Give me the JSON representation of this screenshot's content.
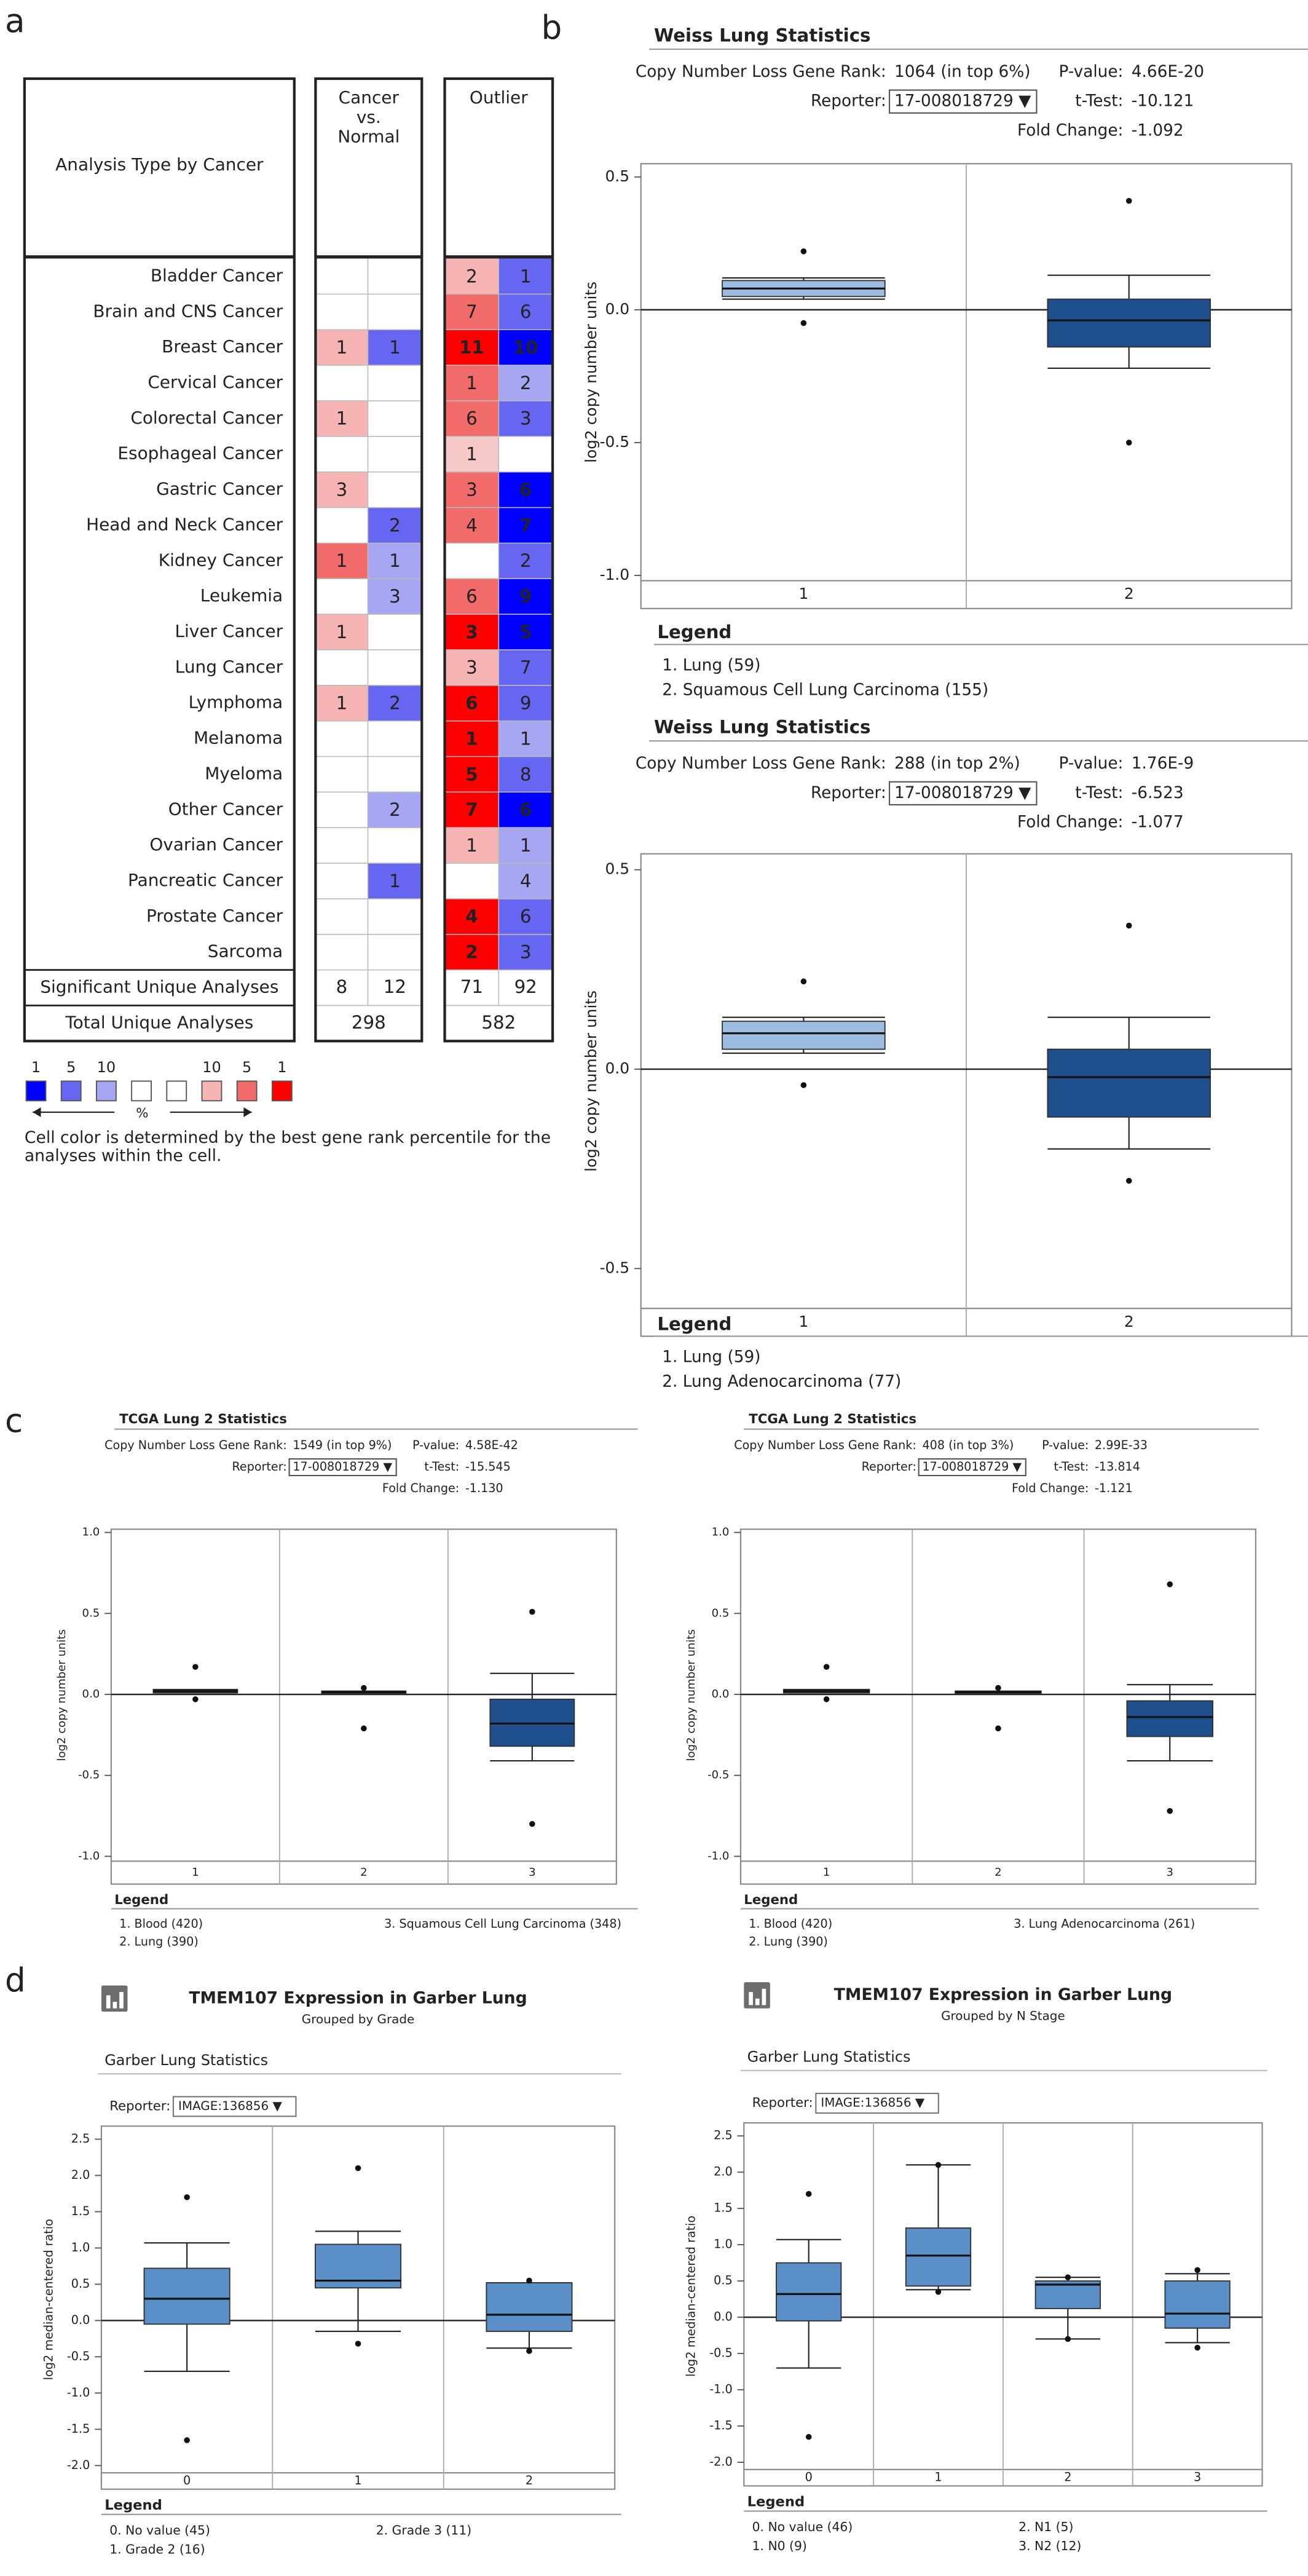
{
  "panel_labels": [
    "a",
    "b",
    "c",
    "d"
  ],
  "heatmap": {
    "header": {
      "name": "Analysis Type by Cancer",
      "cancer_vs_normal": [
        "Cancer",
        "vs.",
        "Normal"
      ],
      "outlier": "Outlier"
    },
    "rows": [
      {
        "name": "Bladder Cancer",
        "cells": [
          null,
          null,
          {
            "value": 2,
            "color": "#f7b4b4"
          },
          {
            "value": 1,
            "color": "#6666f2"
          }
        ]
      },
      {
        "name": "Brain and CNS Cancer",
        "cells": [
          null,
          null,
          {
            "value": 7,
            "color": "#f26b6b"
          },
          {
            "value": 6,
            "color": "#6666f2"
          }
        ]
      },
      {
        "name": "Breast Cancer",
        "cells": [
          {
            "value": 1,
            "color": "#f7b4b4"
          },
          {
            "value": 1,
            "color": "#6666f2"
          },
          {
            "value": 11,
            "color": "#ff0000"
          },
          {
            "value": 10,
            "color": "#0000ff"
          }
        ]
      },
      {
        "name": "Cervical Cancer",
        "cells": [
          null,
          null,
          {
            "value": 1,
            "color": "#f26b6b"
          },
          {
            "value": 2,
            "color": "#a6a6f2"
          }
        ]
      },
      {
        "name": "Colorectal Cancer",
        "cells": [
          {
            "value": 1,
            "color": "#f7b4b4"
          },
          null,
          {
            "value": 6,
            "color": "#f26b6b"
          },
          {
            "value": 3,
            "color": "#6666f2"
          }
        ]
      },
      {
        "name": "Esophageal Cancer",
        "cells": [
          null,
          null,
          {
            "value": 1,
            "color": "#f7c8c8"
          },
          null
        ]
      },
      {
        "name": "Gastric Cancer",
        "cells": [
          {
            "value": 3,
            "color": "#f7b4b4"
          },
          null,
          {
            "value": 3,
            "color": "#f26b6b"
          },
          {
            "value": 6,
            "color": "#0000ff"
          }
        ]
      },
      {
        "name": "Head and Neck Cancer",
        "cells": [
          null,
          {
            "value": 2,
            "color": "#6666f2"
          },
          {
            "value": 4,
            "color": "#f26b6b"
          },
          {
            "value": 7,
            "color": "#0000ff"
          }
        ]
      },
      {
        "name": "Kidney Cancer",
        "cells": [
          {
            "value": 1,
            "color": "#f26b6b"
          },
          {
            "value": 1,
            "color": "#a6a6f2"
          },
          null,
          {
            "value": 2,
            "color": "#6666f2"
          }
        ]
      },
      {
        "name": "Leukemia",
        "cells": [
          null,
          {
            "value": 3,
            "color": "#a6a6f2"
          },
          {
            "value": 6,
            "color": "#f26b6b"
          },
          {
            "value": 9,
            "color": "#0000ff"
          }
        ]
      },
      {
        "name": "Liver Cancer",
        "cells": [
          {
            "value": 1,
            "color": "#f7b4b4"
          },
          null,
          {
            "value": 3,
            "color": "#ff0000"
          },
          {
            "value": 5,
            "color": "#0000ff"
          }
        ]
      },
      {
        "name": "Lung Cancer",
        "cells": [
          null,
          null,
          {
            "value": 3,
            "color": "#f7b4b4"
          },
          {
            "value": 7,
            "color": "#6666f2"
          }
        ]
      },
      {
        "name": "Lymphoma",
        "cells": [
          {
            "value": 1,
            "color": "#f7b4b4"
          },
          {
            "value": 2,
            "color": "#6666f2"
          },
          {
            "value": 6,
            "color": "#ff0000"
          },
          {
            "value": 9,
            "color": "#6666f2"
          }
        ]
      },
      {
        "name": "Melanoma",
        "cells": [
          null,
          null,
          {
            "value": 1,
            "color": "#ff0000"
          },
          {
            "value": 1,
            "color": "#a6a6f2"
          }
        ]
      },
      {
        "name": "Myeloma",
        "cells": [
          null,
          null,
          {
            "value": 5,
            "color": "#ff0000"
          },
          {
            "value": 8,
            "color": "#6666f2"
          }
        ]
      },
      {
        "name": "Other Cancer",
        "cells": [
          null,
          {
            "value": 2,
            "color": "#a6a6f2"
          },
          {
            "value": 7,
            "color": "#ff0000"
          },
          {
            "value": 6,
            "color": "#0000ff"
          }
        ]
      },
      {
        "name": "Ovarian Cancer",
        "cells": [
          null,
          null,
          {
            "value": 1,
            "color": "#f7b4b4"
          },
          {
            "value": 1,
            "color": "#a6a6f2"
          }
        ]
      },
      {
        "name": "Pancreatic Cancer",
        "cells": [
          null,
          {
            "value": 1,
            "color": "#6666f2"
          },
          null,
          {
            "value": 4,
            "color": "#a6a6f2"
          }
        ]
      },
      {
        "name": "Prostate Cancer",
        "cells": [
          null,
          null,
          {
            "value": 4,
            "color": "#ff0000"
          },
          {
            "value": 6,
            "color": "#6666f2"
          }
        ]
      },
      {
        "name": "Sarcoma",
        "cells": [
          null,
          null,
          {
            "value": 2,
            "color": "#ff0000"
          },
          {
            "value": 3,
            "color": "#6666f2"
          }
        ]
      }
    ],
    "summary": [
      {
        "label": "Significant Unique Analyses",
        "values": [
          8,
          12,
          71,
          92
        ]
      },
      {
        "label": "Total Unique Analyses",
        "values": [
          298,
          582
        ]
      }
    ],
    "legend": {
      "colors": [
        "#0000ff",
        "#6666f2",
        "#a6a6f2",
        "#ffffff",
        "#ffffff",
        "#f7b4b4",
        "#f26b6b",
        "#ff0000"
      ],
      "labels": [
        "1",
        "5",
        "10",
        "10",
        "5",
        "1"
      ],
      "unit": "%",
      "note": [
        "Cell color is determined by the best gene rank percentile for the",
        "analyses within the cell."
      ]
    }
  },
  "chart_data": [
    {
      "type": "box",
      "title": "Weiss Lung Statistics",
      "stats": [
        {
          "label": "Copy Number Loss Gene Rank:",
          "value": "1064 (in top 6%)"
        },
        {
          "label": "P-value:",
          "value": "4.66E-20"
        },
        {
          "label": "t-Test:",
          "value": "-10.121"
        },
        {
          "label": "Fold Change:",
          "value": "-1.092"
        }
      ],
      "reporter": {
        "label": "Reporter:",
        "value": "17-008018729 ▼"
      },
      "ylabel": "log2 copy number units",
      "ylim": [
        -1.02,
        0.55
      ],
      "yticks": [
        0.5,
        {
          "value": 0,
          "label": "0.0"
        },
        -0.5,
        {
          "value": -1,
          "label": "-1.0"
        }
      ],
      "categories": [
        "1",
        "2"
      ],
      "boxes": [
        {
          "min": 0.04,
          "q1": 0.05,
          "median": 0.08,
          "q3": 0.11,
          "max": 0.12,
          "outliers": [
            0.22,
            -0.05
          ],
          "color": "#9dbde0"
        },
        {
          "min": -0.22,
          "q1": -0.14,
          "median": -0.04,
          "q3": 0.04,
          "max": 0.13,
          "outliers": [
            0.41,
            -0.5
          ],
          "color": "#1f4e8c"
        }
      ],
      "legend_title": "Legend",
      "legend": [
        {
          "text": "1. Lung (59)",
          "color": "#222222"
        },
        {
          "text": "2. Squamous Cell Lung Carcinoma (155)",
          "color": "#2a4d8f"
        }
      ]
    },
    {
      "type": "box",
      "title": "Weiss Lung Statistics",
      "stats": [
        {
          "label": "Copy Number Loss Gene Rank:",
          "value": "288 (in top 2%)"
        },
        {
          "label": "P-value:",
          "value": "1.76E-9"
        },
        {
          "label": "t-Test:",
          "value": "-6.523"
        },
        {
          "label": "Fold Change:",
          "value": "-1.077"
        }
      ],
      "reporter": {
        "label": "Reporter:",
        "value": "17-008018729 ▼"
      },
      "ylabel": "log2 copy number units",
      "ylim": [
        -0.6,
        0.54
      ],
      "yticks": [
        0.5,
        {
          "value": 0,
          "label": "0.0"
        },
        -0.5
      ],
      "categories": [
        "1",
        "2"
      ],
      "boxes": [
        {
          "min": 0.04,
          "q1": 0.05,
          "median": 0.09,
          "q3": 0.12,
          "max": 0.13,
          "outliers": [
            0.22,
            -0.04
          ],
          "color": "#9dbde0"
        },
        {
          "min": -0.2,
          "q1": -0.12,
          "median": -0.02,
          "q3": 0.05,
          "max": 0.13,
          "outliers": [
            0.36,
            -0.28
          ],
          "color": "#1f4e8c"
        }
      ],
      "legend_title": "Legend",
      "legend": [
        {
          "text": "1. Lung (59)",
          "color": "#222222"
        },
        {
          "text": "2. Lung Adenocarcinoma (77)",
          "color": "#2a4d8f"
        }
      ]
    },
    {
      "type": "box",
      "title": "TCGA Lung 2 Statistics",
      "stats": [
        {
          "label": "Copy Number Loss Gene Rank:",
          "value": "1549 (in top 9%)"
        },
        {
          "label": "P-value:",
          "value": "4.58E-42"
        },
        {
          "label": "t-Test:",
          "value": "-15.545"
        },
        {
          "label": "Fold Change:",
          "value": "-1.130"
        }
      ],
      "reporter": {
        "label": "Reporter:",
        "value": "17-008018729 ▼"
      },
      "ylabel": "log2 copy number units",
      "ylim": [
        -1.03,
        1.02
      ],
      "yticks": [
        {
          "value": 1,
          "label": "1.0"
        },
        0.5,
        {
          "value": 0,
          "label": "0.0"
        },
        -0.5,
        {
          "value": -1,
          "label": "-1.0"
        }
      ],
      "categories": [
        "1",
        "2",
        "3"
      ],
      "boxes": [
        {
          "min": 0.01,
          "q1": 0.01,
          "median": 0.02,
          "q3": 0.03,
          "max": 0.03,
          "outliers": [
            0.17,
            -0.03
          ],
          "color": "#111111"
        },
        {
          "min": 0.01,
          "q1": 0.01,
          "median": 0.015,
          "q3": 0.02,
          "max": 0.02,
          "outliers": [
            0.04,
            -0.21
          ],
          "color": "#111111"
        },
        {
          "min": -0.41,
          "q1": -0.32,
          "median": -0.18,
          "q3": -0.03,
          "max": 0.13,
          "outliers": [
            0.51,
            -0.8
          ],
          "color": "#1f4e8c"
        }
      ],
      "legend_title": "Legend",
      "legend": [
        {
          "text": "1. Blood (420)",
          "color": "#222222"
        },
        {
          "text": "2. Lung (390)",
          "color": "#222222"
        },
        {
          "text": "3. Squamous Cell Lung Carcinoma (348)",
          "color": "#2a4d8f"
        }
      ]
    },
    {
      "type": "box",
      "title": "TCGA Lung 2 Statistics",
      "stats": [
        {
          "label": "Copy Number Loss Gene Rank:",
          "value": "408 (in top 3%)"
        },
        {
          "label": "P-value:",
          "value": "2.99E-33"
        },
        {
          "label": "t-Test:",
          "value": "-13.814"
        },
        {
          "label": "Fold Change:",
          "value": "-1.121"
        }
      ],
      "reporter": {
        "label": "Reporter:",
        "value": "17-008018729 ▼"
      },
      "ylabel": "log2 copy number units",
      "ylim": [
        -1.03,
        1.02
      ],
      "yticks": [
        {
          "value": 1,
          "label": "1.0"
        },
        0.5,
        {
          "value": 0,
          "label": "0.0"
        },
        -0.5,
        {
          "value": -1,
          "label": "-1.0"
        }
      ],
      "categories": [
        "1",
        "2",
        "3"
      ],
      "boxes": [
        {
          "min": 0.01,
          "q1": 0.01,
          "median": 0.02,
          "q3": 0.03,
          "max": 0.03,
          "outliers": [
            0.17,
            -0.03
          ],
          "color": "#111111"
        },
        {
          "min": 0.01,
          "q1": 0.01,
          "median": 0.015,
          "q3": 0.02,
          "max": 0.02,
          "outliers": [
            0.04,
            -0.21
          ],
          "color": "#111111"
        },
        {
          "min": -0.41,
          "q1": -0.26,
          "median": -0.14,
          "q3": -0.04,
          "max": 0.06,
          "outliers": [
            0.68,
            -0.72
          ],
          "color": "#1f4e8c"
        }
      ],
      "legend_title": "Legend",
      "legend": [
        {
          "text": "1. Blood (420)",
          "color": "#222222"
        },
        {
          "text": "2. Lung (390)",
          "color": "#222222"
        },
        {
          "text": "3. Lung Adenocarcinoma (261)",
          "color": "#2a4d8f"
        }
      ]
    },
    {
      "type": "box",
      "title": "TMEM107 Expression in Garber Lung",
      "subtitle": "Grouped by Grade",
      "stats_title": "Garber Lung Statistics",
      "reporter": {
        "label": "Reporter:",
        "value": "IMAGE:136856 ▼"
      },
      "ylabel": "log2 median-centered ratio",
      "ylim": [
        -2.1,
        2.68
      ],
      "yticks": [
        2.5,
        {
          "value": 2,
          "label": "2.0"
        },
        1.5,
        {
          "value": 1,
          "label": "1.0"
        },
        0.5,
        {
          "value": 0,
          "label": "0.0"
        },
        -0.5,
        {
          "value": -1,
          "label": "-1.0"
        },
        -1.5,
        {
          "value": -2,
          "label": "-2.0"
        }
      ],
      "categories": [
        "0",
        "1",
        "2"
      ],
      "boxes": [
        {
          "min": -0.7,
          "q1": -0.05,
          "median": 0.3,
          "q3": 0.72,
          "max": 1.07,
          "outliers": [
            1.7,
            -1.65
          ],
          "color": "#5b8fc7"
        },
        {
          "min": -0.15,
          "q1": 0.45,
          "median": 0.55,
          "q3": 1.05,
          "max": 1.23,
          "outliers": [
            2.1,
            -0.32
          ],
          "color": "#5b8fc7"
        },
        {
          "min": -0.38,
          "q1": -0.15,
          "median": 0.08,
          "q3": 0.52,
          "max": 0.52,
          "outliers": [
            0.55,
            -0.42
          ],
          "color": "#5b8fc7"
        }
      ],
      "legend_title": "Legend",
      "legend": [
        {
          "text": "0. No value (45)",
          "color": "#222222"
        },
        {
          "text": "1. Grade 2 (16)",
          "color": "#222222"
        },
        {
          "text": "2. Grade 3 (11)",
          "color": "#222222"
        }
      ]
    },
    {
      "type": "box",
      "title": "TMEM107 Expression in Garber Lung",
      "subtitle": "Grouped by N Stage",
      "stats_title": "Garber Lung Statistics",
      "reporter": {
        "label": "Reporter:",
        "value": "IMAGE:136856 ▼"
      },
      "ylabel": "log2 median-centered ratio",
      "ylim": [
        -2.1,
        2.68
      ],
      "yticks": [
        2.5,
        {
          "value": 2,
          "label": "2.0"
        },
        1.5,
        {
          "value": 1,
          "label": "1.0"
        },
        0.5,
        {
          "value": 0,
          "label": "0.0"
        },
        -0.5,
        {
          "value": -1,
          "label": "-1.0"
        },
        -1.5,
        {
          "value": -2,
          "label": "-2.0"
        }
      ],
      "categories": [
        "0",
        "1",
        "2",
        "3"
      ],
      "boxes": [
        {
          "min": -0.7,
          "q1": -0.05,
          "median": 0.32,
          "q3": 0.75,
          "max": 1.07,
          "outliers": [
            1.7,
            -1.65
          ],
          "color": "#5b8fc7"
        },
        {
          "min": 0.38,
          "q1": 0.43,
          "median": 0.85,
          "q3": 1.23,
          "max": 2.1,
          "outliers": [
            2.1,
            0.35
          ],
          "color": "#5b8fc7"
        },
        {
          "min": -0.3,
          "q1": 0.12,
          "median": 0.45,
          "q3": 0.5,
          "max": 0.55,
          "outliers": [
            0.55,
            -0.3
          ],
          "color": "#5b8fc7"
        },
        {
          "min": -0.35,
          "q1": -0.15,
          "median": 0.05,
          "q3": 0.5,
          "max": 0.6,
          "outliers": [
            0.65,
            -0.42
          ],
          "color": "#5b8fc7"
        }
      ],
      "legend_title": "Legend",
      "legend": [
        {
          "text": "0. No value (46)",
          "color": "#222222"
        },
        {
          "text": "1. N0 (9)",
          "color": "#222222"
        },
        {
          "text": "2. N1 (5)",
          "color": "#222222"
        },
        {
          "text": "3. N2 (12)",
          "color": "#222222"
        }
      ]
    }
  ]
}
